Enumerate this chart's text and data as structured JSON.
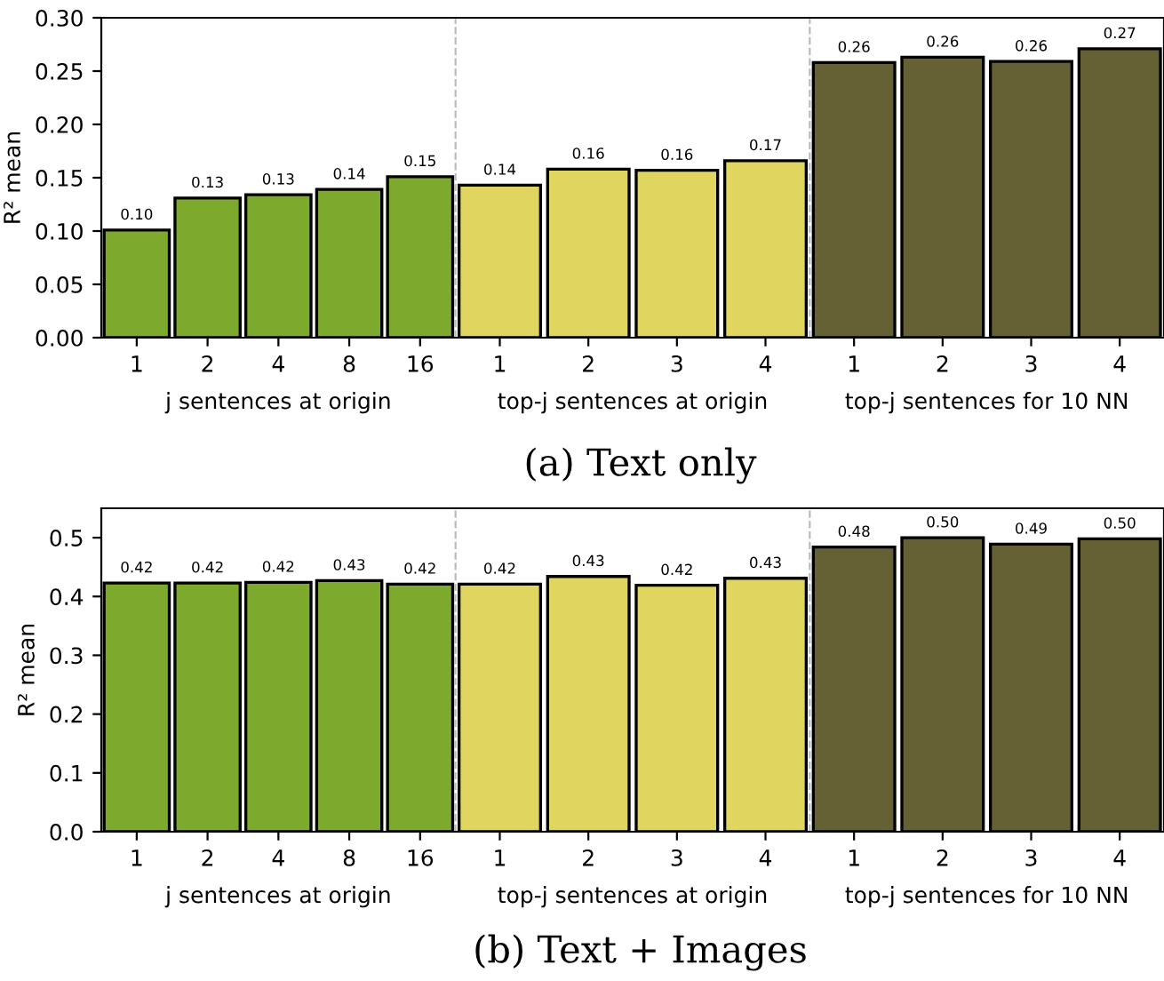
{
  "chart_data": [
    {
      "type": "bar",
      "ylabel": "R² mean",
      "categories": [
        "1",
        "2",
        "4",
        "8",
        "16",
        "1",
        "2",
        "3",
        "4",
        "1",
        "2",
        "3",
        "4"
      ],
      "values": [
        0.101,
        0.131,
        0.134,
        0.139,
        0.151,
        0.143,
        0.158,
        0.157,
        0.166,
        0.258,
        0.263,
        0.259,
        0.271
      ],
      "value_labels": [
        "0.10",
        "0.13",
        "0.13",
        "0.14",
        "0.15",
        "0.14",
        "0.16",
        "0.16",
        "0.17",
        "0.26",
        "0.26",
        "0.26",
        "0.27"
      ],
      "colors": [
        "#7daa2d",
        "#7daa2d",
        "#7daa2d",
        "#7daa2d",
        "#7daa2d",
        "#dfd55f",
        "#dfd55f",
        "#dfd55f",
        "#dfd55f",
        "#656135",
        "#656135",
        "#656135",
        "#656135"
      ],
      "ylim": [
        0,
        0.3
      ],
      "yticks": [
        {
          "value": 0,
          "label": "0.00"
        },
        {
          "value": 0.05,
          "label": "0.05"
        },
        {
          "value": 0.1,
          "label": "0.10"
        },
        {
          "value": 0.15,
          "label": "0.15"
        },
        {
          "value": 0.2,
          "label": "0.20"
        },
        {
          "value": 0.25,
          "label": "0.25"
        },
        {
          "value": 0.3,
          "label": "0.30"
        }
      ],
      "annotations": [
        "j sentences at origin",
        "top-j sentences at origin",
        "top-j sentences for 10 NN",
        "(a) Text only"
      ],
      "grid": false,
      "legend": false
    },
    {
      "type": "bar",
      "ylabel": "R² mean",
      "categories": [
        "1",
        "2",
        "4",
        "8",
        "16",
        "1",
        "2",
        "3",
        "4",
        "1",
        "2",
        "3",
        "4"
      ],
      "values": [
        0.423,
        0.423,
        0.424,
        0.427,
        0.421,
        0.421,
        0.434,
        0.419,
        0.431,
        0.484,
        0.5,
        0.489,
        0.498
      ],
      "value_labels": [
        "0.42",
        "0.42",
        "0.42",
        "0.43",
        "0.42",
        "0.42",
        "0.43",
        "0.42",
        "0.43",
        "0.48",
        "0.50",
        "0.49",
        "0.50"
      ],
      "colors": [
        "#7daa2d",
        "#7daa2d",
        "#7daa2d",
        "#7daa2d",
        "#7daa2d",
        "#dfd55f",
        "#dfd55f",
        "#dfd55f",
        "#dfd55f",
        "#656135",
        "#656135",
        "#656135",
        "#656135"
      ],
      "ylim": [
        0,
        0.55
      ],
      "yticks": [
        {
          "value": 0,
          "label": "0.0"
        },
        {
          "value": 0.1,
          "label": "0.1"
        },
        {
          "value": 0.2,
          "label": "0.2"
        },
        {
          "value": 0.3,
          "label": "0.3"
        },
        {
          "value": 0.4,
          "label": "0.4"
        },
        {
          "value": 0.5,
          "label": "0.5"
        }
      ],
      "annotations": [
        "j sentences at origin",
        "top-j sentences at origin",
        "top-j sentences for 10 NN",
        "(b) Text + Images"
      ],
      "grid": false,
      "legend": false
    }
  ]
}
